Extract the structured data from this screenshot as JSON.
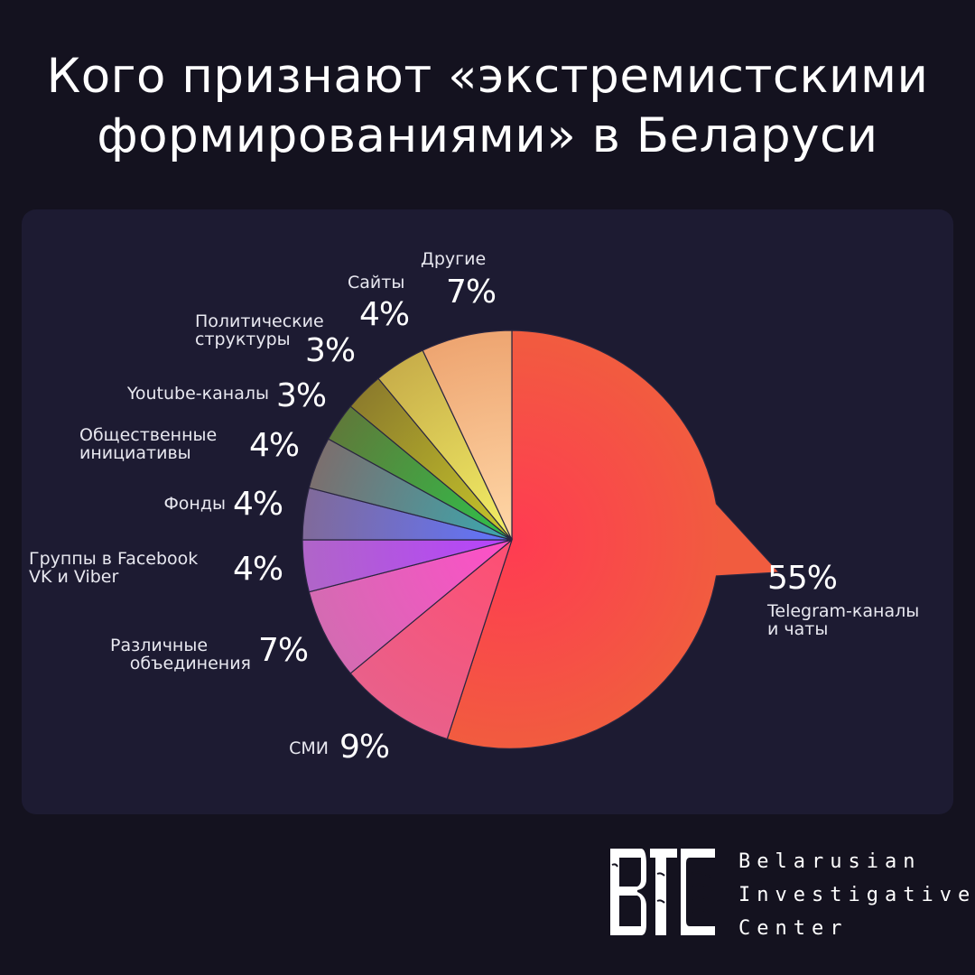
{
  "title": {
    "line1": "Кого признают «экстремистскими",
    "line2": "формированиями» в Беларуси"
  },
  "colors": {
    "background": "#14121f",
    "panel": "#1d1b32",
    "slice_outline": "#2a2640"
  },
  "chart_data": {
    "type": "pie",
    "title": "Кого признают «экстремистскими формированиями» в Беларуси",
    "slices": [
      {
        "label_lines": [
          "Telegram-каналы",
          "и чаты"
        ],
        "value": 55,
        "value_label": "55%",
        "color_inner": "#ff3b52",
        "color_outer": "#f15c3f",
        "exploded": true
      },
      {
        "label_lines": [
          "СМИ"
        ],
        "value": 9,
        "value_label": "9%",
        "color_inner": "#ff4e72",
        "color_outer": "#e9608a"
      },
      {
        "label_lines": [
          "Различные",
          "объединения"
        ],
        "value": 7,
        "value_label": "7%",
        "color_inner": "#ff4fc8",
        "color_outer": "#d46bb2"
      },
      {
        "label_lines": [
          "Группы в Facebook",
          "VK и Viber"
        ],
        "value": 4,
        "value_label": "4%",
        "color_inner": "#b642ff",
        "color_outer": "#b065c8"
      },
      {
        "label_lines": [
          "Фонды"
        ],
        "value": 4,
        "value_label": "4%",
        "color_inner": "#5f74ff",
        "color_outer": "#806a9a"
      },
      {
        "label_lines": [
          "Общественные",
          "инициативы"
        ],
        "value": 4,
        "value_label": "4%",
        "color_inner": "#3aa8b0",
        "color_outer": "#7b6f6e"
      },
      {
        "label_lines": [
          "Youtube-каналы"
        ],
        "value": 3,
        "value_label": "3%",
        "color_inner": "#2ec24a",
        "color_outer": "#5f7a3a"
      },
      {
        "label_lines": [
          "Политические",
          "структуры"
        ],
        "value": 3,
        "value_label": "3%",
        "color_inner": "#c8c82a",
        "color_outer": "#8d7c2c"
      },
      {
        "label_lines": [
          "Сайты"
        ],
        "value": 4,
        "value_label": "4%",
        "color_inner": "#f4f066",
        "color_outer": "#c8ae4a"
      },
      {
        "label_lines": [
          "Другие"
        ],
        "value": 7,
        "value_label": "7%",
        "color_inner": "#ffd8a8",
        "color_outer": "#eea571"
      }
    ]
  },
  "logo": {
    "mark": "BIC",
    "lines": [
      "Belarusian",
      "Investigative",
      "Center"
    ]
  }
}
